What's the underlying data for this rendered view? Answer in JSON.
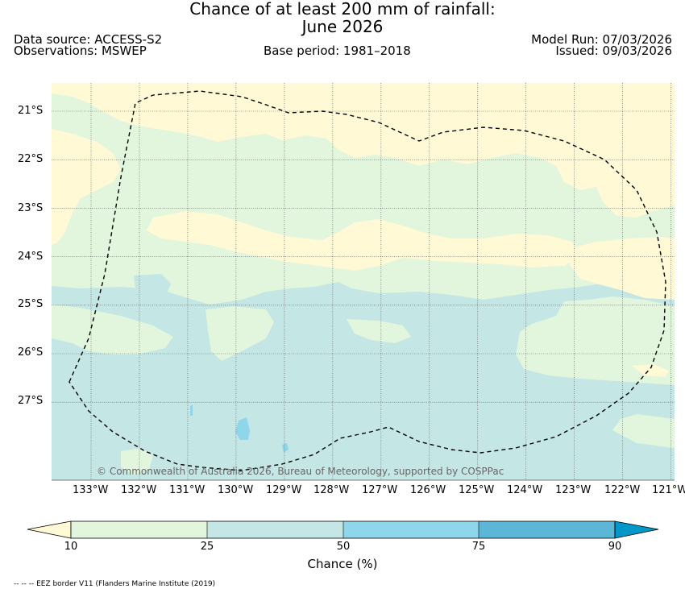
{
  "title": {
    "line1": "Chance of at least 200 mm of rainfall:",
    "line2": "June 2026"
  },
  "meta": {
    "data_source": "Data source: ACCESS-S2",
    "observations": "Observations: MSWEP",
    "base_period": "Base period: 1981–2018",
    "model_run": "Model Run: 07/03/2026",
    "issued": "Issued: 09/03/2026"
  },
  "map": {
    "lat_labels": [
      "21°S",
      "22°S",
      "23°S",
      "24°S",
      "25°S",
      "26°S",
      "27°S"
    ],
    "lon_labels": [
      "133°W",
      "132°W",
      "131°W",
      "130°W",
      "129°W",
      "128°W",
      "127°W",
      "126°W",
      "125°W",
      "124°W",
      "123°W",
      "122°W",
      "121°W"
    ],
    "copyright": "© Commonwealth of Australia 2026, Bureau of Meteorology, supported by COSPPac"
  },
  "colorbar": {
    "ticks": [
      "10",
      "25",
      "50",
      "75",
      "90"
    ],
    "label": "Chance (%)",
    "colors": {
      "under": "#fff9d6",
      "c10_25": "#e1f6dc",
      "c25_50": "#c4e6e5",
      "c50_75": "#8fd6ea",
      "c75_90": "#5cb6d8",
      "over": "#0098c8"
    }
  },
  "legend": {
    "eez": "-- -- -- EEZ border V11 (Flanders Marine Institute (2019)"
  }
}
